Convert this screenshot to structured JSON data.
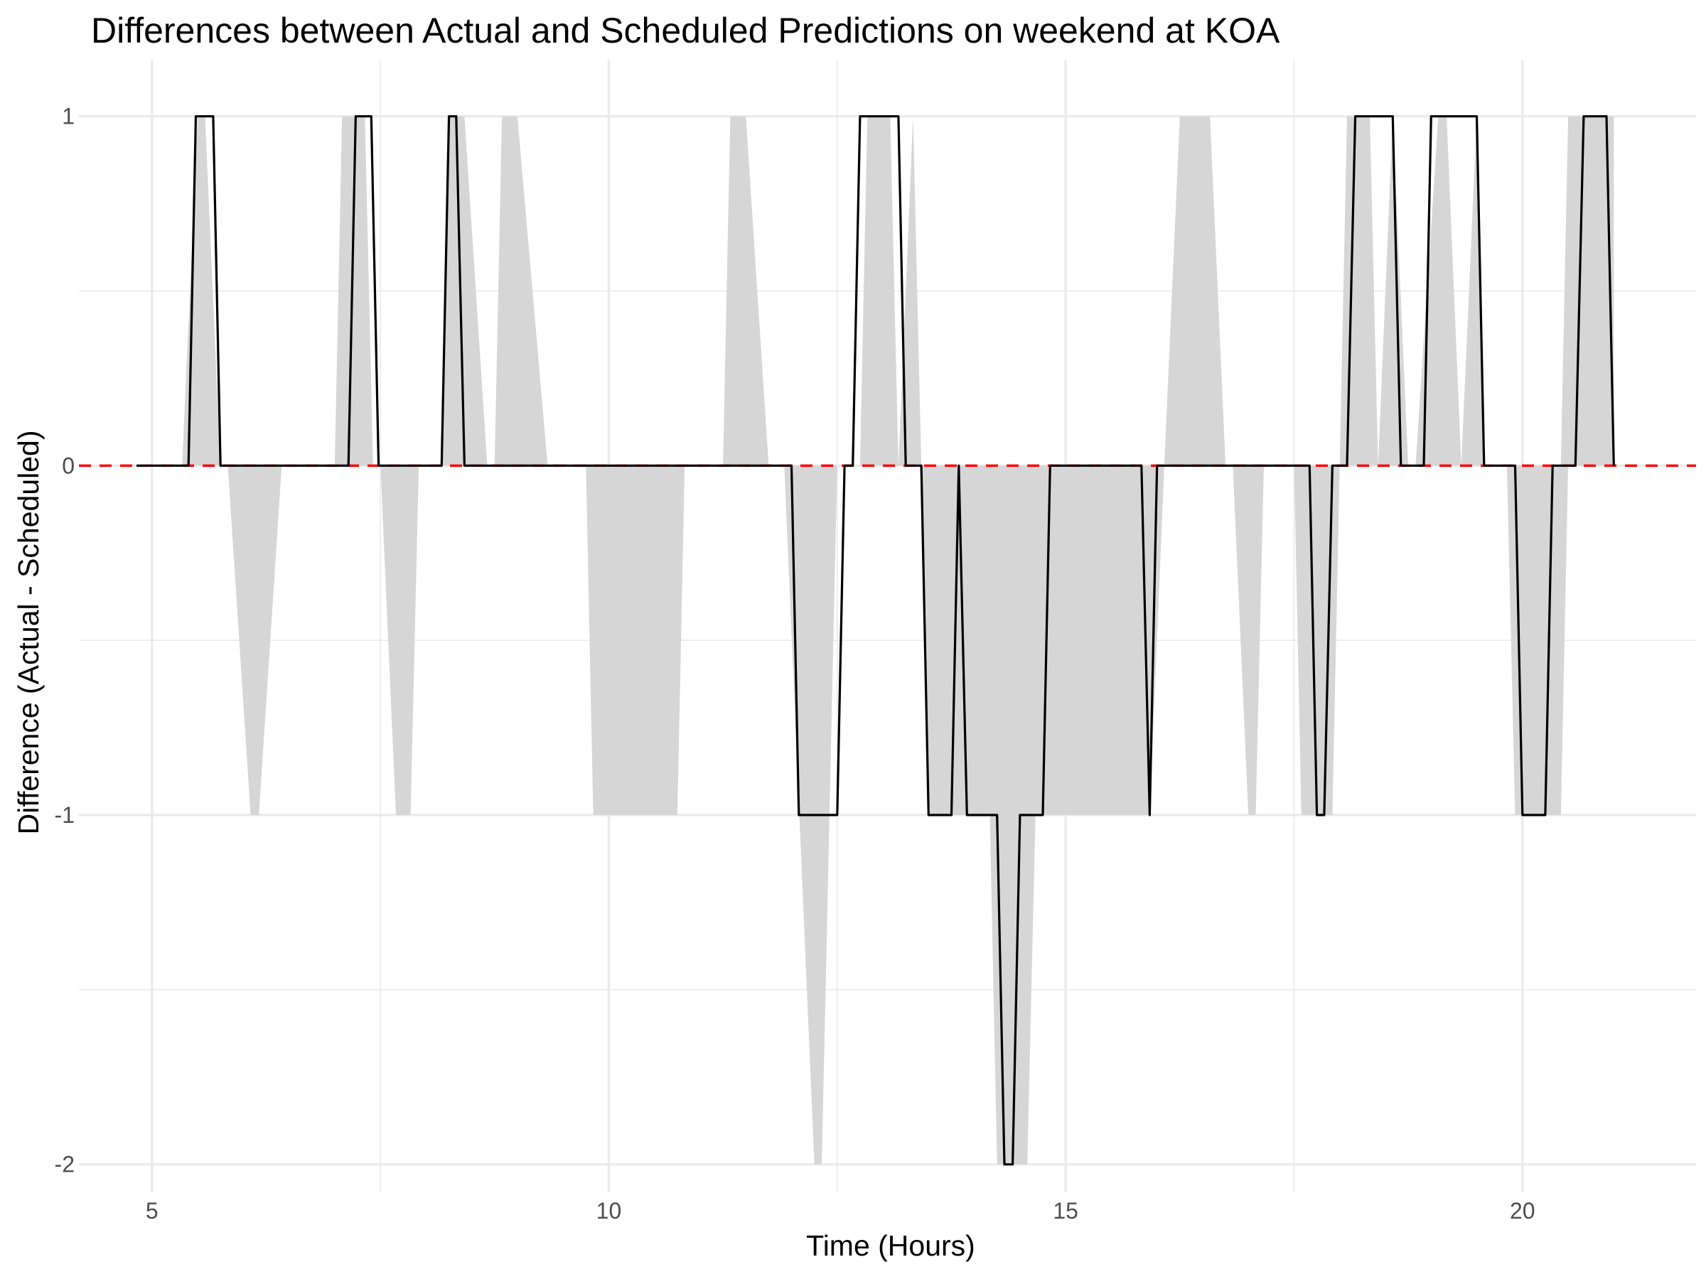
{
  "chart_data": {
    "type": "line",
    "title": "Differences between Actual and Scheduled Predictions on weekend at KOA",
    "xlabel": "Time (Hours)",
    "ylabel": "Difference (Actual - Scheduled)",
    "xlim": [
      4.2,
      21.9
    ],
    "ylim": [
      -2.08,
      1.16
    ],
    "x_ticks": [
      5,
      10,
      15,
      20
    ],
    "y_ticks": [
      1,
      0,
      -1,
      -2
    ],
    "grid": true,
    "reference_line": {
      "y": 0,
      "color": "#ff0000",
      "style": "dashed"
    },
    "series": [
      {
        "color": "#000000",
        "x": [
          4.83,
          5.4,
          5.48,
          5.67,
          5.75,
          7.15,
          7.23,
          7.4,
          7.48,
          8.17,
          8.25,
          8.33,
          8.42,
          12.0,
          12.08,
          12.5,
          12.58,
          12.67,
          12.75,
          13.17,
          13.25,
          13.42,
          13.5,
          13.75,
          13.83,
          13.92,
          14.25,
          14.33,
          14.42,
          14.5,
          14.75,
          14.83,
          15.83,
          15.92,
          16.0,
          17.67,
          17.75,
          17.83,
          17.92,
          18.08,
          18.17,
          18.58,
          18.67,
          18.92,
          19.0,
          19.5,
          19.58,
          19.92,
          20.0,
          20.25,
          20.33,
          20.58,
          20.67,
          20.92,
          21.0
        ],
        "y": [
          0,
          0,
          1,
          1,
          0,
          0,
          1,
          1,
          0,
          0,
          1,
          1,
          0,
          0,
          -1,
          -1,
          0,
          0,
          1,
          1,
          0,
          0,
          -1,
          -1,
          0,
          -1,
          -1,
          -2,
          -2,
          -1,
          -1,
          0,
          0,
          -1,
          0,
          0,
          -1,
          -1,
          0,
          0,
          1,
          1,
          0,
          0,
          1,
          1,
          0,
          0,
          -1,
          -1,
          0,
          0,
          1,
          1,
          0
        ]
      }
    ],
    "shaded_band": {
      "color": "#d6d6d6",
      "x": [
        4.83,
        5.33,
        5.5,
        5.58,
        5.75,
        5.83,
        6.08,
        6.17,
        6.42,
        7.0,
        7.08,
        7.25,
        7.33,
        7.42,
        7.5,
        7.67,
        7.83,
        7.92,
        8.17,
        8.25,
        8.33,
        8.42,
        8.67,
        8.75,
        8.83,
        9.0,
        9.33,
        9.5,
        9.75,
        9.83,
        10.0,
        10.75,
        10.83,
        11.25,
        11.33,
        11.5,
        11.75,
        11.92,
        12.25,
        12.33,
        12.5,
        12.75,
        12.83,
        13.08,
        13.17,
        13.33,
        13.42,
        13.5,
        14.17,
        14.25,
        14.58,
        14.67,
        14.75,
        15.0,
        15.92,
        16.08,
        16.25,
        16.58,
        16.75,
        16.83,
        17.0,
        17.08,
        17.17,
        17.5,
        17.58,
        17.92,
        18.0,
        18.08,
        18.33,
        18.42,
        18.58,
        18.75,
        18.83,
        19.08,
        19.17,
        19.33,
        19.5,
        19.58,
        19.75,
        19.83,
        19.92,
        20.33,
        20.42,
        20.5,
        20.58,
        21.0
      ],
      "y_upper": [
        0,
        0,
        1,
        1,
        0,
        0,
        0,
        0,
        0,
        0,
        1,
        1,
        1,
        0,
        0,
        0,
        0,
        0,
        0,
        1,
        1,
        1,
        0,
        0,
        1,
        1,
        0,
        0,
        0,
        0,
        0,
        0,
        0,
        0,
        1,
        1,
        0,
        0,
        0,
        0,
        0,
        0,
        1,
        1,
        0,
        1,
        0,
        0,
        0,
        0,
        0,
        0,
        0,
        0,
        0,
        0,
        1,
        1,
        0,
        0,
        0,
        0,
        0,
        0,
        0,
        0,
        0,
        1,
        1,
        0,
        1,
        0,
        0,
        1,
        1,
        0,
        1,
        0,
        0,
        0,
        0,
        0,
        0,
        1,
        1,
        1
      ],
      "y_lower": [
        0,
        0,
        0,
        0,
        0,
        0,
        -1,
        -1,
        0,
        0,
        0,
        0,
        0,
        0,
        0,
        -1,
        -1,
        0,
        0,
        0,
        0,
        0,
        0,
        0,
        0,
        0,
        0,
        0,
        0,
        -1,
        -1,
        -1,
        0,
        0,
        0,
        0,
        0,
        0,
        -2,
        -2,
        0,
        0,
        0,
        0,
        0,
        0,
        0,
        -1,
        -1,
        -2,
        -2,
        -1,
        -1,
        -1,
        -1,
        0,
        0,
        0,
        0,
        0,
        -1,
        -1,
        0,
        0,
        -1,
        -1,
        0,
        0,
        0,
        0,
        0,
        0,
        0,
        0,
        0,
        0,
        0,
        0,
        0,
        0,
        -1,
        -1,
        -1,
        0,
        0,
        0
      ]
    }
  }
}
